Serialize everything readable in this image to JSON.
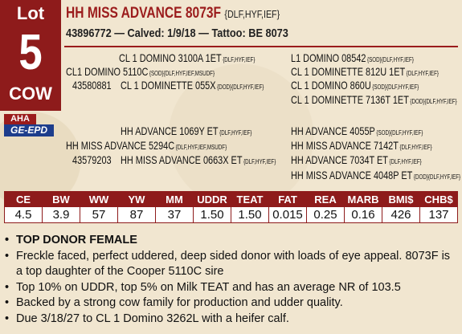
{
  "lot": {
    "label": "Lot",
    "number": "5",
    "kind": "COW"
  },
  "header": {
    "title": "HH MISS ADVANCE 8073F",
    "title_suffix": "{DLF,HYF,IEF}",
    "registration": "43896772 — Calved: 1/9/18 — Tattoo: BE 8073"
  },
  "pedigree": {
    "sire": {
      "name": "CL1 DOMINO 5110C",
      "tag": "{SOD}{DLF,HYF,IEF,MSUDF}",
      "reg": "43580881"
    },
    "sire_sire": {
      "name": "CL 1 DOMINO 3100A 1ET",
      "tag": "{DLF,HYF,IEF}"
    },
    "sire_dam": {
      "name": "CL 1 DOMINETTE 055X",
      "tag": "{DOD}{DLF,HYF,IEF}"
    },
    "sire_sire_sire": {
      "name": "L1 DOMINO 08542",
      "tag": "{SOD}{DLF,HYF,IEF}"
    },
    "sire_sire_dam": {
      "name": "CL 1 DOMINETTE 812U 1ET",
      "tag": "{DLF,HYF,IEF}"
    },
    "sire_dam_sire": {
      "name": "CL 1 DOMINO 860U",
      "tag": "{SOD}{DLF,HYF,IEF}"
    },
    "sire_dam_dam": {
      "name": "CL 1 DOMINETTE 7136T 1ET",
      "tag": "{DOD}{DLF,HYF,IEF}"
    },
    "dam": {
      "name": "HH MISS ADVANCE 5294C",
      "tag": "{DLF,HYF,IEF,MSUDF}",
      "reg": "43579203"
    },
    "dam_sire": {
      "name": "HH ADVANCE 1069Y ET",
      "tag": "{DLF,HYF,IEF}"
    },
    "dam_dam": {
      "name": "HH MISS ADVANCE 0663X ET",
      "tag": "{DLF,HYF,IEF}"
    },
    "dam_sire_sire": {
      "name": "HH ADVANCE 4055P",
      "tag": "{SOD}{DLF,HYF,IEF}"
    },
    "dam_sire_dam": {
      "name": "HH MISS ADVANCE 7142T",
      "tag": "{DLF,HYF,IEF}"
    },
    "dam_dam_sire": {
      "name": "HH ADVANCE 7034T ET",
      "tag": "{DLF,HYF,IEF}"
    },
    "dam_dam_dam": {
      "name": "HH MISS ADVANCE 4048P ET",
      "tag": "{DOD}{DLF,HYF,IEF}"
    }
  },
  "logo": {
    "top": "AHA",
    "bottom": "GE-EPD"
  },
  "epd_table": {
    "headers": [
      "CE",
      "BW",
      "WW",
      "YW",
      "MM",
      "UDDR",
      "TEAT",
      "FAT",
      "REA",
      "MARB",
      "BMI$",
      "CHB$"
    ],
    "values": [
      "4.5",
      "3.9",
      "57",
      "87",
      "37",
      "1.50",
      "1.50",
      "0.015",
      "0.25",
      "0.16",
      "426",
      "137"
    ]
  },
  "notes": {
    "headline": "TOP DONOR FEMALE",
    "bullets": [
      "Freckle faced, perfect uddered, deep sided donor with loads of eye appeal. 8073F is a top daughter of the Cooper 5110C sire",
      "Top 10% on UDDR, top 5% on Milk TEAT and has an average NR of 103.5",
      "Backed by a strong cow family for production and udder quality.",
      "Due 3/18/27 to CL 1 Domino 3262L with a heifer calf."
    ]
  }
}
